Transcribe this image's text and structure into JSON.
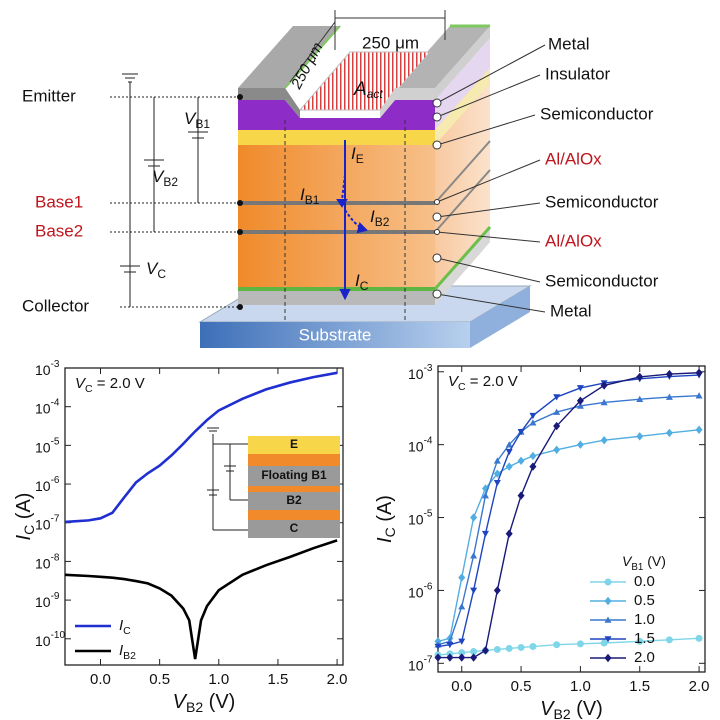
{
  "diagram": {
    "dimensions": [
      "250 μm",
      "250 μm"
    ],
    "area": {
      "main": "A",
      "sub": "act"
    },
    "layers": [
      "Metal",
      "Insulator",
      "Semiconductor",
      "Al/AlOx",
      "Semiconductor",
      "Al/AlOx",
      "Semiconductor",
      "Metal"
    ],
    "substrate": "Substrate",
    "terminals": [
      "Emitter",
      "Base1",
      "Base2",
      "Collector"
    ],
    "voltages": [
      {
        "main": "V",
        "sub": "B1"
      },
      {
        "main": "V",
        "sub": "B2"
      },
      {
        "main": "V",
        "sub": "C"
      }
    ],
    "currents": [
      {
        "main": "I",
        "sub": "E"
      },
      {
        "main": "I",
        "sub": "B1"
      },
      {
        "main": "I",
        "sub": "B2"
      },
      {
        "main": "I",
        "sub": "C"
      }
    ]
  },
  "chart_data": [
    {
      "type": "line",
      "log_y": true,
      "legend": "lower left",
      "annotation": {
        "main": "V",
        "sub": "C",
        "rest": " = 2.0 V"
      },
      "x_label": {
        "main": "V",
        "sub": "B2",
        "rest": " (V)"
      },
      "y_label": {
        "main": "I",
        "sub": "C",
        "rest": " (A)"
      },
      "inset": [
        "E",
        "Floating B1",
        "B2",
        "C"
      ],
      "xlim": [
        -0.3,
        2.05
      ],
      "xticks": [
        {
          "value": 0,
          "label": "0.0"
        },
        {
          "value": 0.5,
          "label": "0.5"
        },
        {
          "value": 1,
          "label": "1.0"
        },
        {
          "value": 1.5,
          "label": "1.5"
        },
        {
          "value": 2,
          "label": "2.0"
        }
      ],
      "ylim": [
        2.1e-11,
        0.001
      ],
      "yticks": [
        {
          "value": 1e-10,
          "label": "10",
          "sup": "-10"
        },
        {
          "value": 1e-09,
          "label": "10",
          "sup": "-9"
        },
        {
          "value": 1e-08,
          "label": "10",
          "sup": "-8"
        },
        {
          "value": 1e-07,
          "label": "10",
          "sup": "-7"
        },
        {
          "value": 1e-06,
          "label": "10",
          "sup": "-6"
        },
        {
          "value": 1e-05,
          "label": "10",
          "sup": "-5"
        },
        {
          "value": 0.0001,
          "label": "10",
          "sup": "-4"
        },
        {
          "value": 0.001,
          "label": "10",
          "sup": "-3"
        }
      ],
      "x": [
        -0.3,
        -0.1,
        0,
        0.1,
        0.2,
        0.3,
        0.4,
        0.5,
        0.6,
        0.7,
        0.75,
        0.8,
        0.85,
        0.9,
        1.0,
        1.2,
        1.4,
        1.6,
        1.8,
        2.0
      ],
      "series": [
        {
          "name": "I",
          "subscript": "C",
          "color": "#1f2fd0",
          "values": [
            1.05e-07,
            1.15e-07,
            1.3e-07,
            1.8e-07,
            4.5e-07,
            1.1e-06,
            1.9e-06,
            3e-06,
            5.5e-06,
            1.1e-05,
            1.6e-05,
            2.3e-05,
            3.2e-05,
            4.5e-05,
            8e-05,
            0.00016,
            0.00028,
            0.00042,
            0.00058,
            0.00075
          ]
        },
        {
          "name": "I",
          "subscript": "B2",
          "color": "#000000",
          "values": [
            4.5e-09,
            4.2e-09,
            4e-09,
            3.8e-09,
            3.5e-09,
            3.1e-09,
            2.7e-09,
            2e-09,
            1.3e-09,
            6e-10,
            3e-10,
            3e-11,
            3e-10,
            7e-10,
            1.8e-09,
            4.5e-09,
            8e-09,
            1.3e-08,
            2.2e-08,
            3.5e-08
          ]
        }
      ]
    },
    {
      "type": "line",
      "log_y": true,
      "legend": "lower right",
      "annotation": {
        "main": "V",
        "sub": "C",
        "rest": " = 2.0 V"
      },
      "x_label": {
        "main": "V",
        "sub": "B2",
        "rest": " (V)"
      },
      "y_label": {
        "main": "I",
        "sub": "C",
        "rest": " (A)"
      },
      "legend_title": {
        "main": "V",
        "sub": "B1",
        "rest": " (V)"
      },
      "xlim": [
        -0.2,
        2.05
      ],
      "xticks": [
        {
          "value": 0,
          "label": "0.0"
        },
        {
          "value": 0.5,
          "label": "0.5"
        },
        {
          "value": 1,
          "label": "1.0"
        },
        {
          "value": 1.5,
          "label": "1.5"
        },
        {
          "value": 2,
          "label": "2.0"
        }
      ],
      "ylim": [
        7.6e-08,
        0.0012
      ],
      "yticks": [
        {
          "value": 1e-07,
          "label": "10",
          "sup": "-7"
        },
        {
          "value": 1e-06,
          "label": "10",
          "sup": "-6"
        },
        {
          "value": 1e-05,
          "label": "10",
          "sup": "-5"
        },
        {
          "value": 0.0001,
          "label": "10",
          "sup": "-4"
        },
        {
          "value": 0.001,
          "label": "10",
          "sup": "-3"
        }
      ],
      "x": [
        -0.2,
        -0.1,
        0,
        0.1,
        0.2,
        0.3,
        0.4,
        0.5,
        0.6,
        0.8,
        1.0,
        1.2,
        1.5,
        1.75,
        2.0
      ],
      "series": [
        {
          "name": "0.0",
          "color": "#7fd6e8",
          "marker": "circle",
          "values": [
            1.3e-07,
            1.35e-07,
            1.4e-07,
            1.45e-07,
            1.5e-07,
            1.55e-07,
            1.6e-07,
            1.65e-07,
            1.7e-07,
            1.8e-07,
            1.85e-07,
            1.9e-07,
            2e-07,
            2.1e-07,
            2.2e-07
          ]
        },
        {
          "name": "0.5",
          "color": "#52aee0",
          "marker": "diamond",
          "values": [
            2e-07,
            2.2e-07,
            1.5e-06,
            1e-05,
            2.5e-05,
            4e-05,
            5e-05,
            6e-05,
            7e-05,
            8.5e-05,
            0.0001,
            0.000115,
            0.00013,
            0.000145,
            0.00016
          ]
        },
        {
          "name": "1.0",
          "color": "#3a78d0",
          "marker": "triangle-up",
          "values": [
            1.8e-07,
            2e-07,
            6e-07,
            3e-06,
            2e-05,
            6e-05,
            0.0001,
            0.00015,
            0.0002,
            0.00028,
            0.00034,
            0.00038,
            0.00042,
            0.00045,
            0.00047
          ]
        },
        {
          "name": "1.5",
          "color": "#1f45c0",
          "marker": "triangle-down",
          "values": [
            1.7e-07,
            1.8e-07,
            2e-07,
            1e-06,
            6e-06,
            3e-05,
            8e-05,
            0.00015,
            0.00025,
            0.00045,
            0.0006,
            0.0007,
            0.0008,
            0.00086,
            0.0009
          ]
        },
        {
          "name": "2.0",
          "color": "#1a1a78",
          "marker": "diamond",
          "values": [
            1.2e-07,
            1.2e-07,
            1.2e-07,
            1.2e-07,
            1.5e-07,
            1e-06,
            6e-06,
            2e-05,
            5e-05,
            0.00018,
            0.0004,
            0.00065,
            0.00085,
            0.00093,
            0.00097
          ]
        }
      ]
    }
  ]
}
